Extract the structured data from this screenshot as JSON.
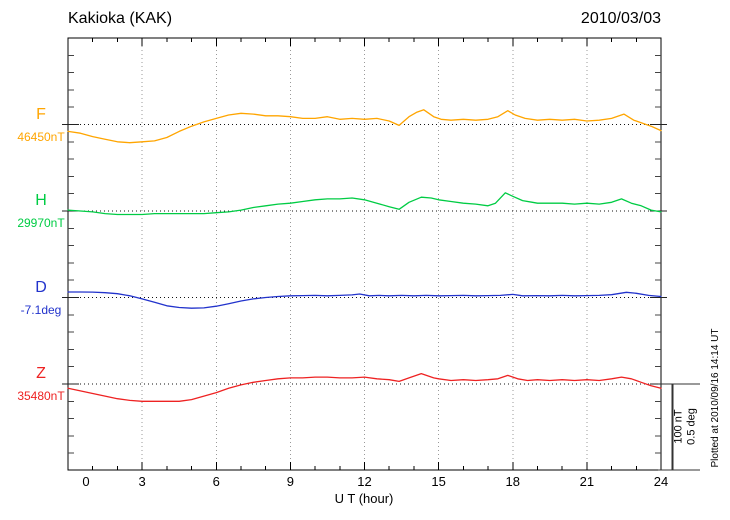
{
  "chart_data": {
    "type": "line",
    "title": "Kakioka (KAK)",
    "date": "2010/03/03",
    "xlabel": "U T (hour)",
    "x_range": [
      0,
      24
    ],
    "x_ticks": [
      0,
      3,
      6,
      9,
      12,
      15,
      18,
      21,
      24
    ],
    "x_minor_tick_step_hours": 1,
    "grid": "dotted vertical gridlines every 3 hours; dotted horizontal baseline per channel",
    "legend_position": "channel letter and baseline value at left of each trace",
    "scale": {
      "nT_per_division": 100,
      "deg_per_division": 0.5
    },
    "scale_bar_labels": {
      "nt": "100 nT",
      "deg": "0.5 deg"
    },
    "plotted_at": "Plotted at 2010/09/16 14:14 UT",
    "series": [
      {
        "name": "F",
        "unit": "nT",
        "baseline_value": 46450,
        "baseline_label": "46450nT",
        "color": "#FFA500",
        "points": [
          [
            0,
            46442
          ],
          [
            0.5,
            46440
          ],
          [
            1,
            46436
          ],
          [
            1.5,
            46433
          ],
          [
            2,
            46430
          ],
          [
            2.5,
            46429
          ],
          [
            3,
            46430
          ],
          [
            3.5,
            46431
          ],
          [
            4,
            46435
          ],
          [
            4.5,
            46442
          ],
          [
            5,
            46448
          ],
          [
            5.5,
            46453
          ],
          [
            6,
            46457
          ],
          [
            6.5,
            46461
          ],
          [
            7,
            46463
          ],
          [
            7.5,
            46462
          ],
          [
            8,
            46460
          ],
          [
            8.5,
            46460
          ],
          [
            9,
            46459
          ],
          [
            9.5,
            46457
          ],
          [
            10,
            46457
          ],
          [
            10.5,
            46459
          ],
          [
            11,
            46456
          ],
          [
            11.5,
            46457
          ],
          [
            12,
            46456
          ],
          [
            12.5,
            46457
          ],
          [
            13,
            46454
          ],
          [
            13.4,
            46449
          ],
          [
            13.8,
            46459
          ],
          [
            14.1,
            46464
          ],
          [
            14.4,
            46467
          ],
          [
            14.8,
            46459
          ],
          [
            15.1,
            46456
          ],
          [
            15.5,
            46455
          ],
          [
            16,
            46456
          ],
          [
            16.5,
            46455
          ],
          [
            17,
            46456
          ],
          [
            17.4,
            46459
          ],
          [
            17.8,
            46466
          ],
          [
            18.1,
            46461
          ],
          [
            18.5,
            46457
          ],
          [
            19,
            46455
          ],
          [
            19.5,
            46456
          ],
          [
            20,
            46455
          ],
          [
            20.5,
            46456
          ],
          [
            21,
            46454
          ],
          [
            21.5,
            46455
          ],
          [
            22,
            46457
          ],
          [
            22.5,
            46462
          ],
          [
            22.9,
            46455
          ],
          [
            23.2,
            46452
          ],
          [
            23.6,
            46448
          ],
          [
            24,
            46443
          ]
        ]
      },
      {
        "name": "H",
        "unit": "nT",
        "baseline_value": 29970,
        "baseline_label": "29970nT",
        "color": "#00CC44",
        "points": [
          [
            0,
            29971
          ],
          [
            0.5,
            29970
          ],
          [
            1,
            29969
          ],
          [
            1.5,
            29967
          ],
          [
            2,
            29966
          ],
          [
            2.5,
            29966
          ],
          [
            3,
            29966
          ],
          [
            3.5,
            29967
          ],
          [
            4,
            29967
          ],
          [
            4.5,
            29967
          ],
          [
            5,
            29967
          ],
          [
            5.5,
            29967
          ],
          [
            6,
            29968
          ],
          [
            6.5,
            29969
          ],
          [
            7,
            29971
          ],
          [
            7.5,
            29974
          ],
          [
            8,
            29976
          ],
          [
            8.5,
            29978
          ],
          [
            9,
            29979
          ],
          [
            9.5,
            29981
          ],
          [
            10,
            29983
          ],
          [
            10.5,
            29984
          ],
          [
            11,
            29984
          ],
          [
            11.5,
            29985
          ],
          [
            12,
            29983
          ],
          [
            12.5,
            29979
          ],
          [
            13,
            29975
          ],
          [
            13.4,
            29972
          ],
          [
            13.8,
            29980
          ],
          [
            14.3,
            29986
          ],
          [
            14.7,
            29985
          ],
          [
            15,
            29983
          ],
          [
            15.5,
            29981
          ],
          [
            16,
            29979
          ],
          [
            16.5,
            29978
          ],
          [
            17,
            29976
          ],
          [
            17.3,
            29979
          ],
          [
            17.7,
            29991
          ],
          [
            18,
            29987
          ],
          [
            18.4,
            29982
          ],
          [
            18.8,
            29980
          ],
          [
            19,
            29979
          ],
          [
            19.5,
            29979
          ],
          [
            20,
            29979
          ],
          [
            20.5,
            29978
          ],
          [
            21,
            29979
          ],
          [
            21.5,
            29978
          ],
          [
            22,
            29980
          ],
          [
            22.4,
            29984
          ],
          [
            22.8,
            29979
          ],
          [
            23.2,
            29976
          ],
          [
            23.6,
            29971
          ],
          [
            24,
            29969
          ]
        ]
      },
      {
        "name": "D",
        "unit": "deg",
        "baseline_value": -7.1,
        "baseline_label": "-7.1deg",
        "color": "#2233CC",
        "points": [
          [
            0,
            -7.068
          ],
          [
            0.5,
            -7.068
          ],
          [
            1,
            -7.069
          ],
          [
            1.5,
            -7.072
          ],
          [
            2,
            -7.078
          ],
          [
            2.5,
            -7.09
          ],
          [
            3,
            -7.108
          ],
          [
            3.5,
            -7.128
          ],
          [
            4,
            -7.148
          ],
          [
            4.5,
            -7.158
          ],
          [
            5,
            -7.162
          ],
          [
            5.5,
            -7.16
          ],
          [
            6,
            -7.15
          ],
          [
            6.5,
            -7.136
          ],
          [
            7,
            -7.12
          ],
          [
            7.5,
            -7.108
          ],
          [
            8,
            -7.1
          ],
          [
            8.5,
            -7.094
          ],
          [
            9,
            -7.09
          ],
          [
            9.5,
            -7.089
          ],
          [
            10,
            -7.088
          ],
          [
            10.5,
            -7.09
          ],
          [
            11,
            -7.088
          ],
          [
            11.5,
            -7.085
          ],
          [
            11.8,
            -7.08
          ],
          [
            12.2,
            -7.09
          ],
          [
            12.6,
            -7.088
          ],
          [
            13,
            -7.09
          ],
          [
            13.5,
            -7.088
          ],
          [
            14,
            -7.09
          ],
          [
            14.5,
            -7.088
          ],
          [
            15,
            -7.09
          ],
          [
            15.5,
            -7.089
          ],
          [
            16,
            -7.088
          ],
          [
            16.5,
            -7.09
          ],
          [
            17,
            -7.089
          ],
          [
            17.5,
            -7.088
          ],
          [
            18,
            -7.082
          ],
          [
            18.4,
            -7.09
          ],
          [
            19,
            -7.089
          ],
          [
            19.5,
            -7.09
          ],
          [
            20,
            -7.088
          ],
          [
            20.5,
            -7.09
          ],
          [
            21,
            -7.089
          ],
          [
            21.5,
            -7.088
          ],
          [
            22,
            -7.084
          ],
          [
            22.6,
            -7.07
          ],
          [
            23,
            -7.076
          ],
          [
            23.5,
            -7.088
          ],
          [
            24,
            -7.094
          ]
        ]
      },
      {
        "name": "Z",
        "unit": "nT",
        "baseline_value": 35480,
        "baseline_label": "35480nT",
        "color": "#EE2222",
        "points": [
          [
            0,
            35475
          ],
          [
            0.5,
            35472
          ],
          [
            1,
            35469
          ],
          [
            1.5,
            35466
          ],
          [
            2,
            35463
          ],
          [
            2.5,
            35461
          ],
          [
            3,
            35460
          ],
          [
            3.5,
            35460
          ],
          [
            4,
            35460
          ],
          [
            4.5,
            35460
          ],
          [
            5,
            35462
          ],
          [
            5.5,
            35466
          ],
          [
            6,
            35470
          ],
          [
            6.5,
            35475
          ],
          [
            7,
            35479
          ],
          [
            7.5,
            35482
          ],
          [
            8,
            35484
          ],
          [
            8.5,
            35486
          ],
          [
            9,
            35487
          ],
          [
            9.5,
            35487
          ],
          [
            10,
            35488
          ],
          [
            10.5,
            35488
          ],
          [
            11,
            35487
          ],
          [
            11.5,
            35487
          ],
          [
            12,
            35488
          ],
          [
            12.5,
            35486
          ],
          [
            13,
            35485
          ],
          [
            13.4,
            35483
          ],
          [
            13.8,
            35487
          ],
          [
            14.3,
            35492
          ],
          [
            14.8,
            35487
          ],
          [
            15,
            35486
          ],
          [
            15.5,
            35484
          ],
          [
            16,
            35485
          ],
          [
            16.5,
            35484
          ],
          [
            17,
            35485
          ],
          [
            17.4,
            35486
          ],
          [
            17.8,
            35490
          ],
          [
            18.2,
            35486
          ],
          [
            18.6,
            35484
          ],
          [
            19,
            35485
          ],
          [
            19.5,
            35484
          ],
          [
            20,
            35485
          ],
          [
            20.5,
            35484
          ],
          [
            21,
            35485
          ],
          [
            21.5,
            35484
          ],
          [
            22,
            35486
          ],
          [
            22.4,
            35488
          ],
          [
            22.8,
            35486
          ],
          [
            23.2,
            35482
          ],
          [
            23.6,
            35478
          ],
          [
            24,
            35475
          ]
        ]
      }
    ]
  }
}
